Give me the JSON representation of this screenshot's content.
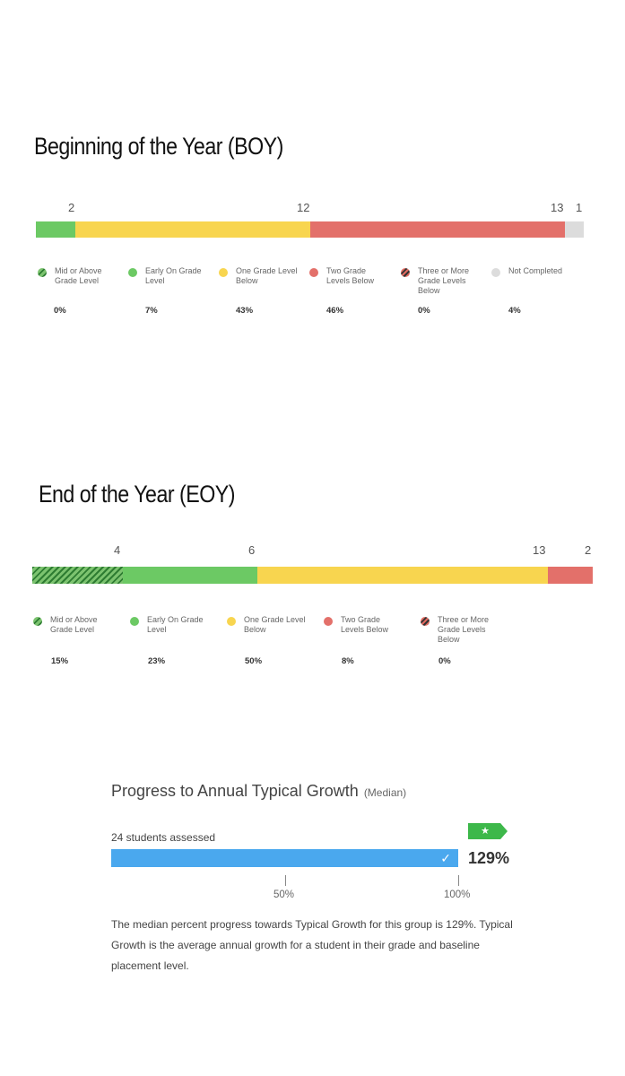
{
  "boy": {
    "title": "Beginning of the Year (BOY)",
    "counts": [
      "2",
      "12",
      "13",
      "1"
    ],
    "legend": [
      {
        "label": "Mid or Above Grade Level",
        "pct": "0%"
      },
      {
        "label": "Early On Grade Level",
        "pct": "7%"
      },
      {
        "label": "One Grade Level Below",
        "pct": "43%"
      },
      {
        "label": "Two Grade Levels Below",
        "pct": "46%"
      },
      {
        "label": "Three or More Grade Levels Below",
        "pct": "0%"
      },
      {
        "label": "Not Completed",
        "pct": "4%"
      }
    ]
  },
  "eoy": {
    "title": "End of the Year (EOY)",
    "counts": [
      "4",
      "6",
      "13",
      "2"
    ],
    "legend": [
      {
        "label": "Mid or Above Grade Level",
        "pct": "15%"
      },
      {
        "label": "Early On Grade Level",
        "pct": "23%"
      },
      {
        "label": "One Grade Level Below",
        "pct": "50%"
      },
      {
        "label": "Two Grade Levels Below",
        "pct": "8%"
      },
      {
        "label": "Three or More Grade Levels Below",
        "pct": "0%"
      }
    ]
  },
  "growth": {
    "title": "Progress to Annual Typical Growth",
    "subtitle": "(Median)",
    "students": "24 students assessed",
    "value_label": "129%",
    "tick_50": "50%",
    "tick_100": "100%",
    "star": "★",
    "check": "✓",
    "description": "The median percent progress towards Typical Growth for this group is 129%. Typical Growth is the average annual growth for a student in their grade and baseline placement level."
  },
  "colors": {
    "mid_or_above": "#3e8f3e",
    "early_on": "#6cc964",
    "one_below": "#f8d54f",
    "two_below": "#e3706a",
    "three_below": "#e3706a",
    "not_completed": "#dcdcdc",
    "growth_bar": "#4aa8ee",
    "star_badge": "#3db84a"
  },
  "chart_data": [
    {
      "type": "bar",
      "title": "Beginning of the Year (BOY)",
      "orientation": "horizontal-stacked",
      "categories": [
        "Mid or Above Grade Level",
        "Early On Grade Level",
        "One Grade Level Below",
        "Two Grade Levels Below",
        "Three or More Grade Levels Below",
        "Not Completed"
      ],
      "counts": [
        0,
        2,
        12,
        13,
        0,
        1
      ],
      "percentages": [
        0,
        7,
        43,
        46,
        0,
        4
      ]
    },
    {
      "type": "bar",
      "title": "End of the Year (EOY)",
      "orientation": "horizontal-stacked",
      "categories": [
        "Mid or Above Grade Level",
        "Early On Grade Level",
        "One Grade Level Below",
        "Two Grade Levels Below",
        "Three or More Grade Levels Below"
      ],
      "counts": [
        4,
        6,
        13,
        2,
        0
      ],
      "percentages": [
        15,
        23,
        50,
        8,
        0
      ]
    },
    {
      "type": "bar",
      "title": "Progress to Annual Typical Growth",
      "orientation": "horizontal",
      "values": [
        129
      ],
      "x_ticks": [
        50,
        100
      ]
    }
  ]
}
